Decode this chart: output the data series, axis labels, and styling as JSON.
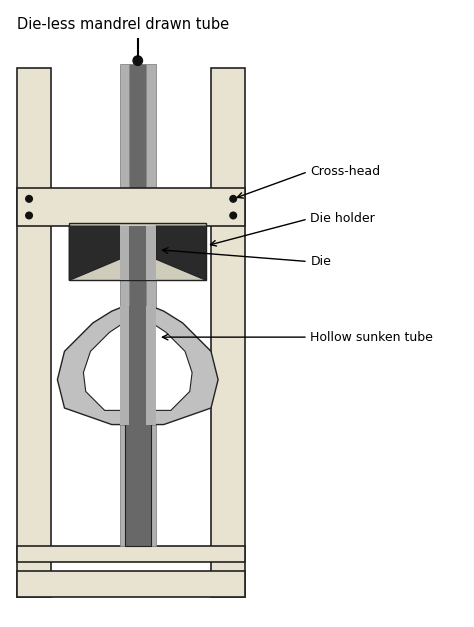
{
  "title": "Die-less mandrel drawn tube",
  "labels": {
    "cross_head": "Cross-head",
    "die_holder": "Die holder",
    "die": "Die",
    "hollow_sunken_tube": "Hollow sunken tube"
  },
  "colors": {
    "background": "#ffffff",
    "frame_fill": "#e8e3d0",
    "frame_border": "#222222",
    "crosshead_fill": "#e8e3d0",
    "die_holder_fill": "#d0ccbc",
    "die_fill": "#2a2a2a",
    "tube_light": "#b0b0b0",
    "tube_dark": "#686868",
    "mandrel_dark": "#686868",
    "grip_light": "#c0c0c0",
    "grip_lighter": "#d0d0d0",
    "grip_inner_white": "#f0f0f0",
    "grip_block": "#d8d8d8",
    "base_dark": "#686868",
    "dot": "#111111"
  },
  "figsize": [
    4.74,
    6.27
  ],
  "dpi": 100
}
